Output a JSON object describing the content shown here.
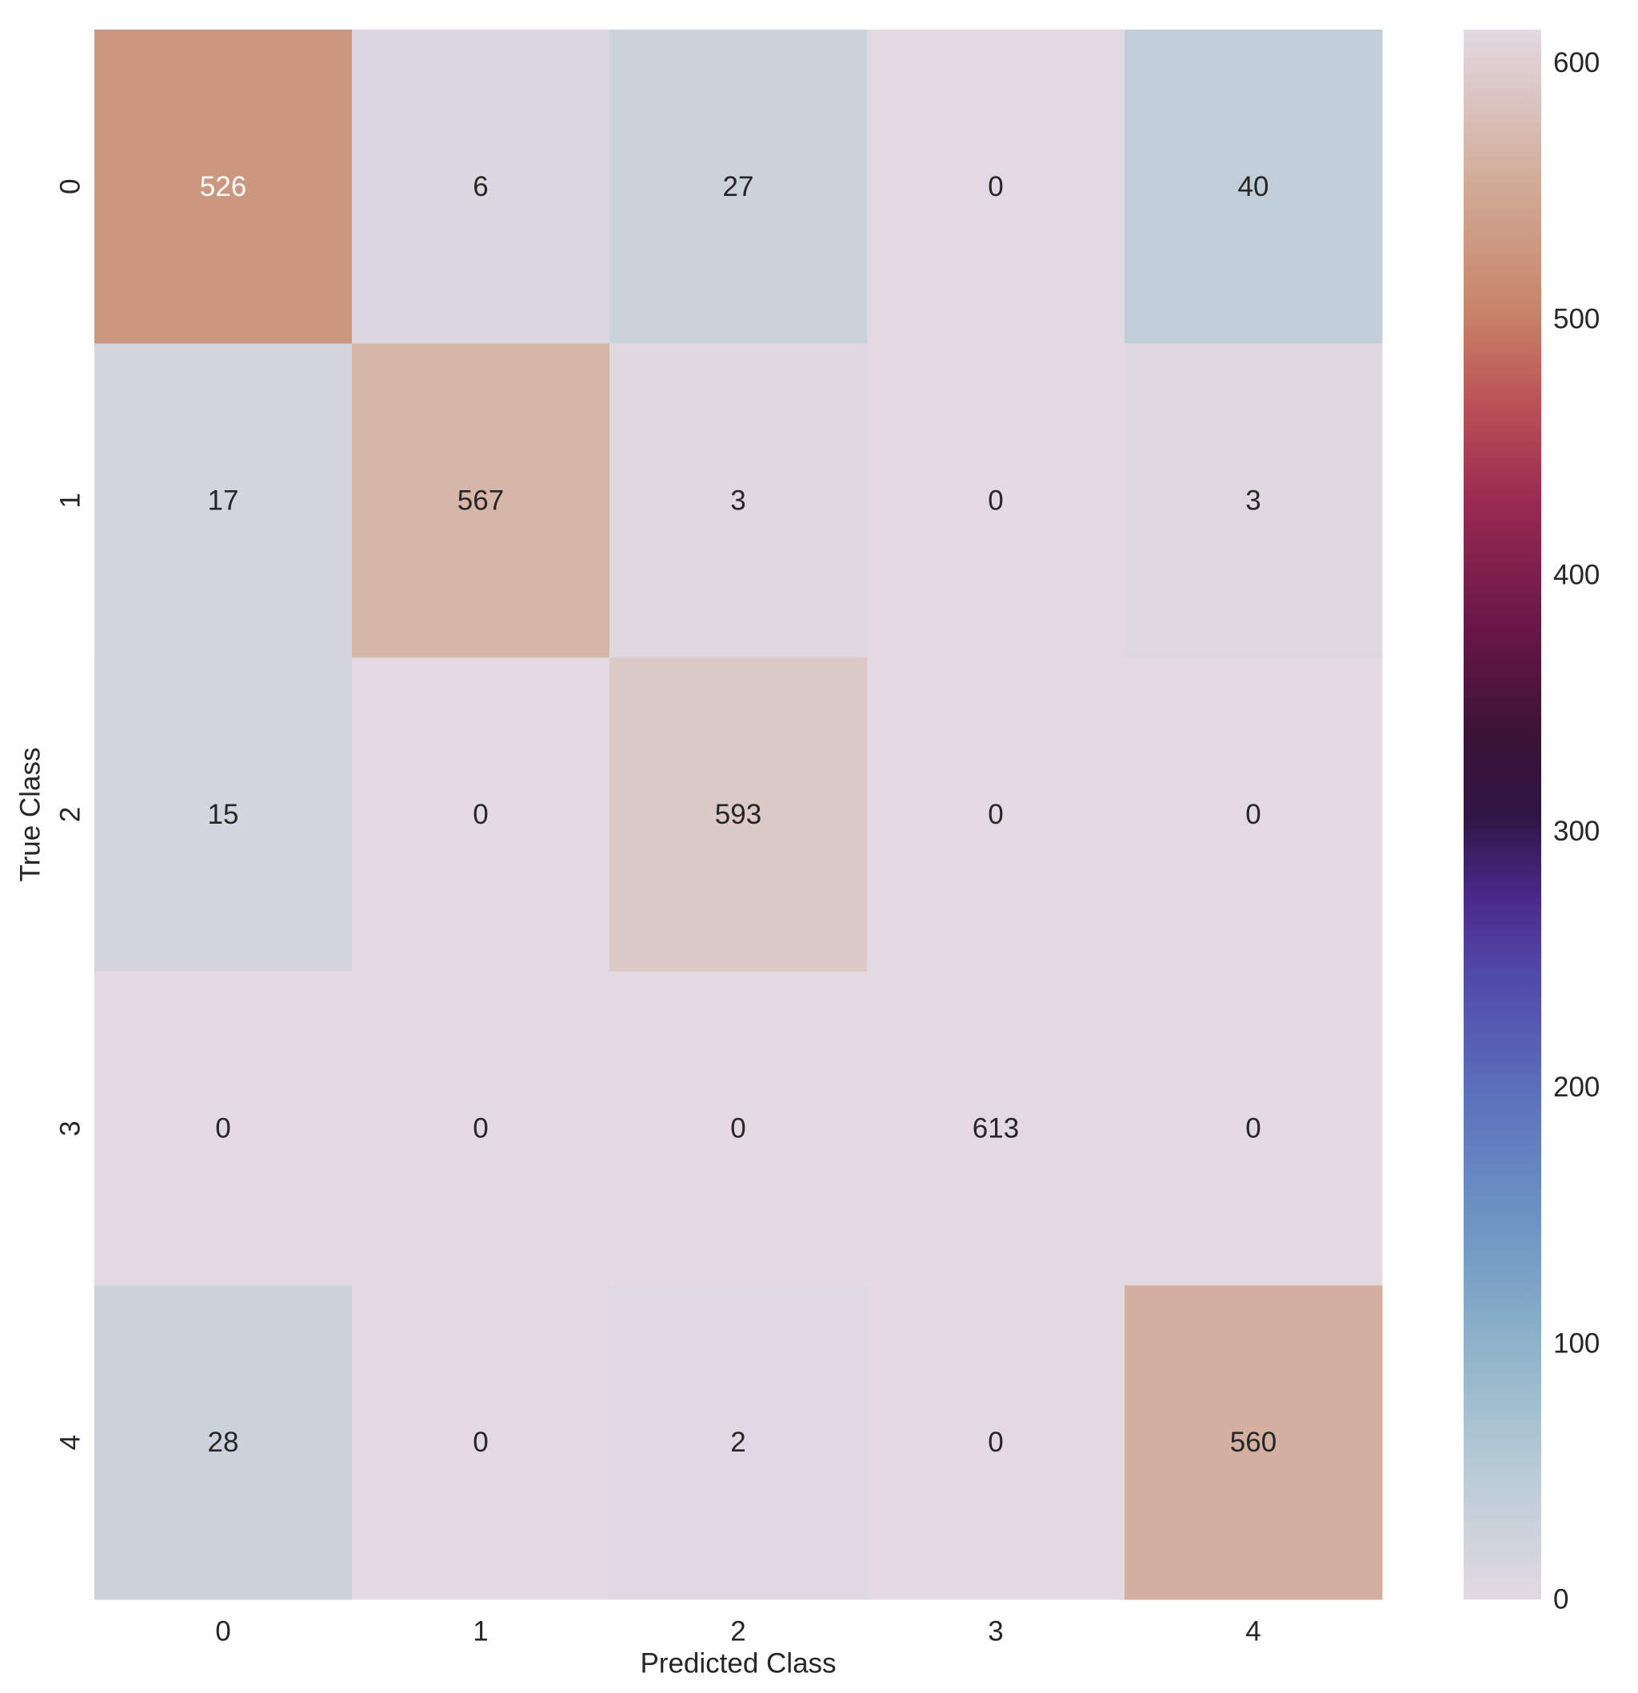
{
  "chart_data": {
    "type": "heatmap",
    "xlabel": "Predicted Class",
    "ylabel": "True Class",
    "x_categories": [
      "0",
      "1",
      "2",
      "3",
      "4"
    ],
    "y_categories": [
      "0",
      "1",
      "2",
      "3",
      "4"
    ],
    "values": [
      [
        526,
        6,
        27,
        0,
        40
      ],
      [
        17,
        567,
        3,
        0,
        3
      ],
      [
        15,
        0,
        593,
        0,
        0
      ],
      [
        0,
        0,
        0,
        613,
        0
      ],
      [
        28,
        0,
        2,
        0,
        560
      ]
    ],
    "colorbar": {
      "min": 0,
      "max": 613,
      "ticks": [
        0,
        100,
        200,
        300,
        400,
        500,
        600
      ],
      "colormap": "twilight",
      "stops": [
        [
          "0",
          "#e2d9e2"
        ],
        [
          "0.08",
          "#b9ccd6"
        ],
        [
          "0.16",
          "#8fb3c9"
        ],
        [
          "0.24",
          "#6e94c3"
        ],
        [
          "0.32",
          "#5c72bd"
        ],
        [
          "0.40",
          "#5148a8"
        ],
        [
          "0.45",
          "#4a2788"
        ],
        [
          "0.50",
          "#2f1544"
        ],
        [
          "0.55",
          "#3a1436"
        ],
        [
          "0.62",
          "#6a1748"
        ],
        [
          "0.70",
          "#9a2b52"
        ],
        [
          "0.76",
          "#bb5056"
        ],
        [
          "0.82",
          "#c8836a"
        ],
        [
          "0.90",
          "#d1aa96"
        ],
        [
          "1.0",
          "#e2d9e2"
        ]
      ]
    },
    "grid": false
  }
}
